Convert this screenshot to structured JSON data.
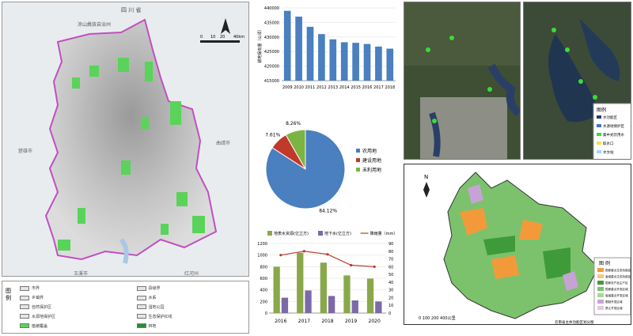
{
  "left_map": {
    "labels": {
      "province": "四 川 省",
      "reserve": "凉山彝族自治州",
      "city_west": "楚雄市",
      "city_east": "曲靖市",
      "city_south_west": "玉溪市",
      "city_south_east": "红河州"
    },
    "scale": {
      "ticks": [
        "0",
        "10",
        "20",
        "40km"
      ]
    },
    "legend": {
      "title": "图 例",
      "items": [
        "市界",
        "县级界",
        "乡镇界",
        "水系",
        "自然保护区",
        "湿地公园",
        "水源地保护区",
        "生态保护红线",
        "植被覆盖",
        "林地"
      ]
    }
  },
  "satellite": {
    "legend_title": "图例",
    "legend_items": [
      "水功能区",
      "水源地保护区",
      "集中式饮用水",
      "取水口",
      "水文站"
    ]
  },
  "right_map": {
    "legend_title": "图 例",
    "legend_items": [
      {
        "label": "国家重点生态功能区",
        "color": "#f29a3a"
      },
      {
        "label": "省级重点生态功能区",
        "color": "#f6c77c"
      },
      {
        "label": "国家农产品主产区",
        "color": "#3f9b3a"
      },
      {
        "label": "国家重点开发区域",
        "color": "#7cc26d"
      },
      {
        "label": "省级重点开发区域",
        "color": "#a7d89a"
      },
      {
        "label": "限制开发区域",
        "color": "#c7a2d6"
      },
      {
        "label": "禁止开发区域",
        "color": "#e6c3ea"
      }
    ],
    "footnote": "云南省主体功能区划分图",
    "north": "N",
    "scale_label": "0  100 200 400公里"
  },
  "chart_data": [
    {
      "type": "bar",
      "title": "",
      "categories": [
        "2009",
        "2010",
        "2011",
        "2012",
        "2013",
        "2014",
        "2015",
        "2016",
        "2017",
        "2018"
      ],
      "values": [
        439000,
        437000,
        433500,
        431000,
        429200,
        428200,
        428000,
        427600,
        426700,
        426000
      ],
      "ylabel": "耕地保有量（公顷）",
      "ylim": [
        415000,
        440000
      ],
      "yticks": [
        "415000",
        "420000",
        "425000",
        "430000",
        "435000",
        "440000"
      ],
      "color": "#4a7fc0"
    },
    {
      "type": "pie",
      "slices": [
        {
          "label": "农用地",
          "value": 84.12,
          "color": "#4a7fc0",
          "text": "84.12%"
        },
        {
          "label": "建设用地",
          "value": 7.61,
          "color": "#c0392b",
          "text": "7.61%"
        },
        {
          "label": "未利用地",
          "value": 8.26,
          "color": "#7cb342",
          "text": "8.26%"
        }
      ],
      "legend_position": "right"
    },
    {
      "type": "bar",
      "categories": [
        "2016",
        "2017",
        "2018",
        "2019",
        "2020"
      ],
      "series": [
        {
          "name": "地表水资源(亿立方)",
          "values": [
            800,
            1040,
            870,
            650,
            595
          ],
          "color": "#8aa84a"
        },
        {
          "name": "地下水(亿立方)",
          "values": [
            265,
            390,
            295,
            218,
            200
          ],
          "color": "#7b69a8"
        },
        {
          "name": "降雨量（mm）",
          "type": "line",
          "values": [
            75,
            80,
            76,
            62,
            60
          ],
          "color": "#c0392b"
        }
      ],
      "ylim_left": [
        0,
        1200
      ],
      "yticks_left": [
        "0",
        "200",
        "400",
        "600",
        "800",
        "1000",
        "1200"
      ],
      "ylim_right": [
        0,
        90
      ],
      "yticks_right": [
        "0",
        "10",
        "20",
        "30",
        "40",
        "50",
        "60",
        "70",
        "80",
        "90"
      ],
      "legend_position": "top"
    }
  ]
}
